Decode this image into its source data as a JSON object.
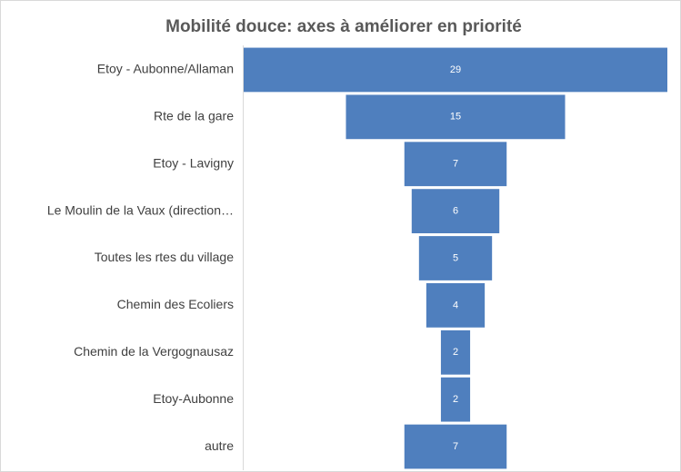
{
  "chart_data": {
    "type": "funnel",
    "title": "Mobilité douce: axes à améliorer en priorité",
    "categories": [
      "Etoy - Aubonne/Allaman",
      "Rte de la gare",
      "Etoy - Lavigny",
      "Le Moulin de la Vaux (direction…",
      "Toutes les rtes du village",
      "Chemin des Ecoliers",
      "Chemin de la Vergognausaz",
      "Etoy-Aubonne",
      "autre"
    ],
    "values": [
      29,
      15,
      7,
      6,
      5,
      4,
      2,
      2,
      7
    ],
    "color": "#4f7fbe"
  }
}
